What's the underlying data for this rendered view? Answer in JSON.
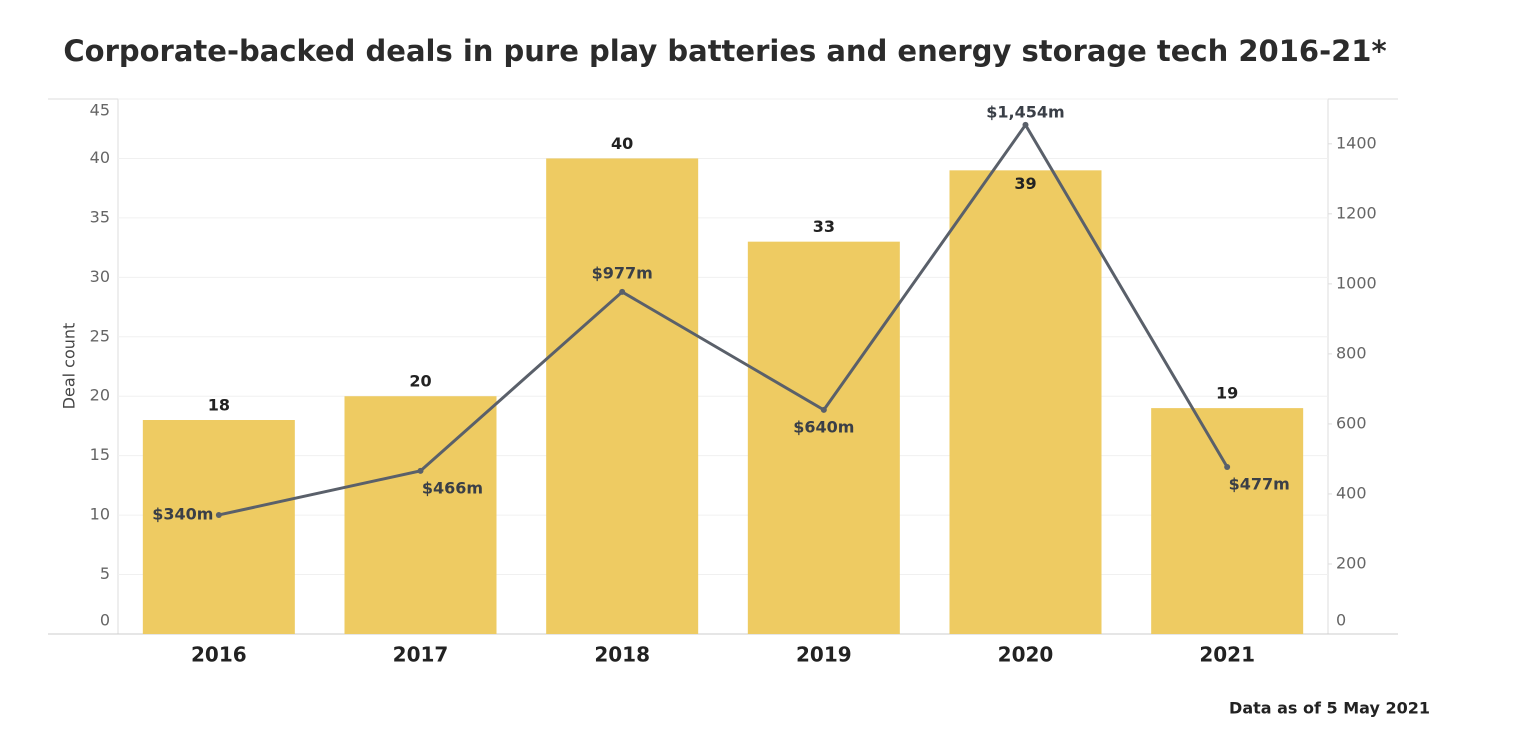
{
  "chart_data": {
    "type": "combo",
    "title": "Corporate-backed deals in pure play batteries and energy storage tech 2016-21*",
    "y_label": "Deal count",
    "footnote": "Data as of 5 May 2021",
    "categories": [
      "2016",
      "2017",
      "2018",
      "2019",
      "2020",
      "2021"
    ],
    "series": [
      {
        "type": "bar",
        "color": "#eecb62",
        "values": [
          18,
          20,
          40,
          33,
          39,
          19
        ]
      },
      {
        "type": "line",
        "axis": "y2",
        "color": "#5a606a",
        "values": [
          340,
          466,
          977,
          640,
          1454,
          477
        ],
        "value_labels": [
          "$340m",
          "$466m",
          "$977m",
          "$640m",
          "$1,454m",
          "$477m"
        ]
      }
    ],
    "ylim": [
      0,
      45
    ],
    "yticks": [
      0,
      5,
      10,
      15,
      20,
      25,
      30,
      35,
      40,
      45
    ],
    "y2lim": [
      0,
      1528
    ],
    "y2ticks": [
      0,
      200,
      400,
      600,
      800,
      1000,
      1200,
      1400
    ],
    "grid": true
  }
}
